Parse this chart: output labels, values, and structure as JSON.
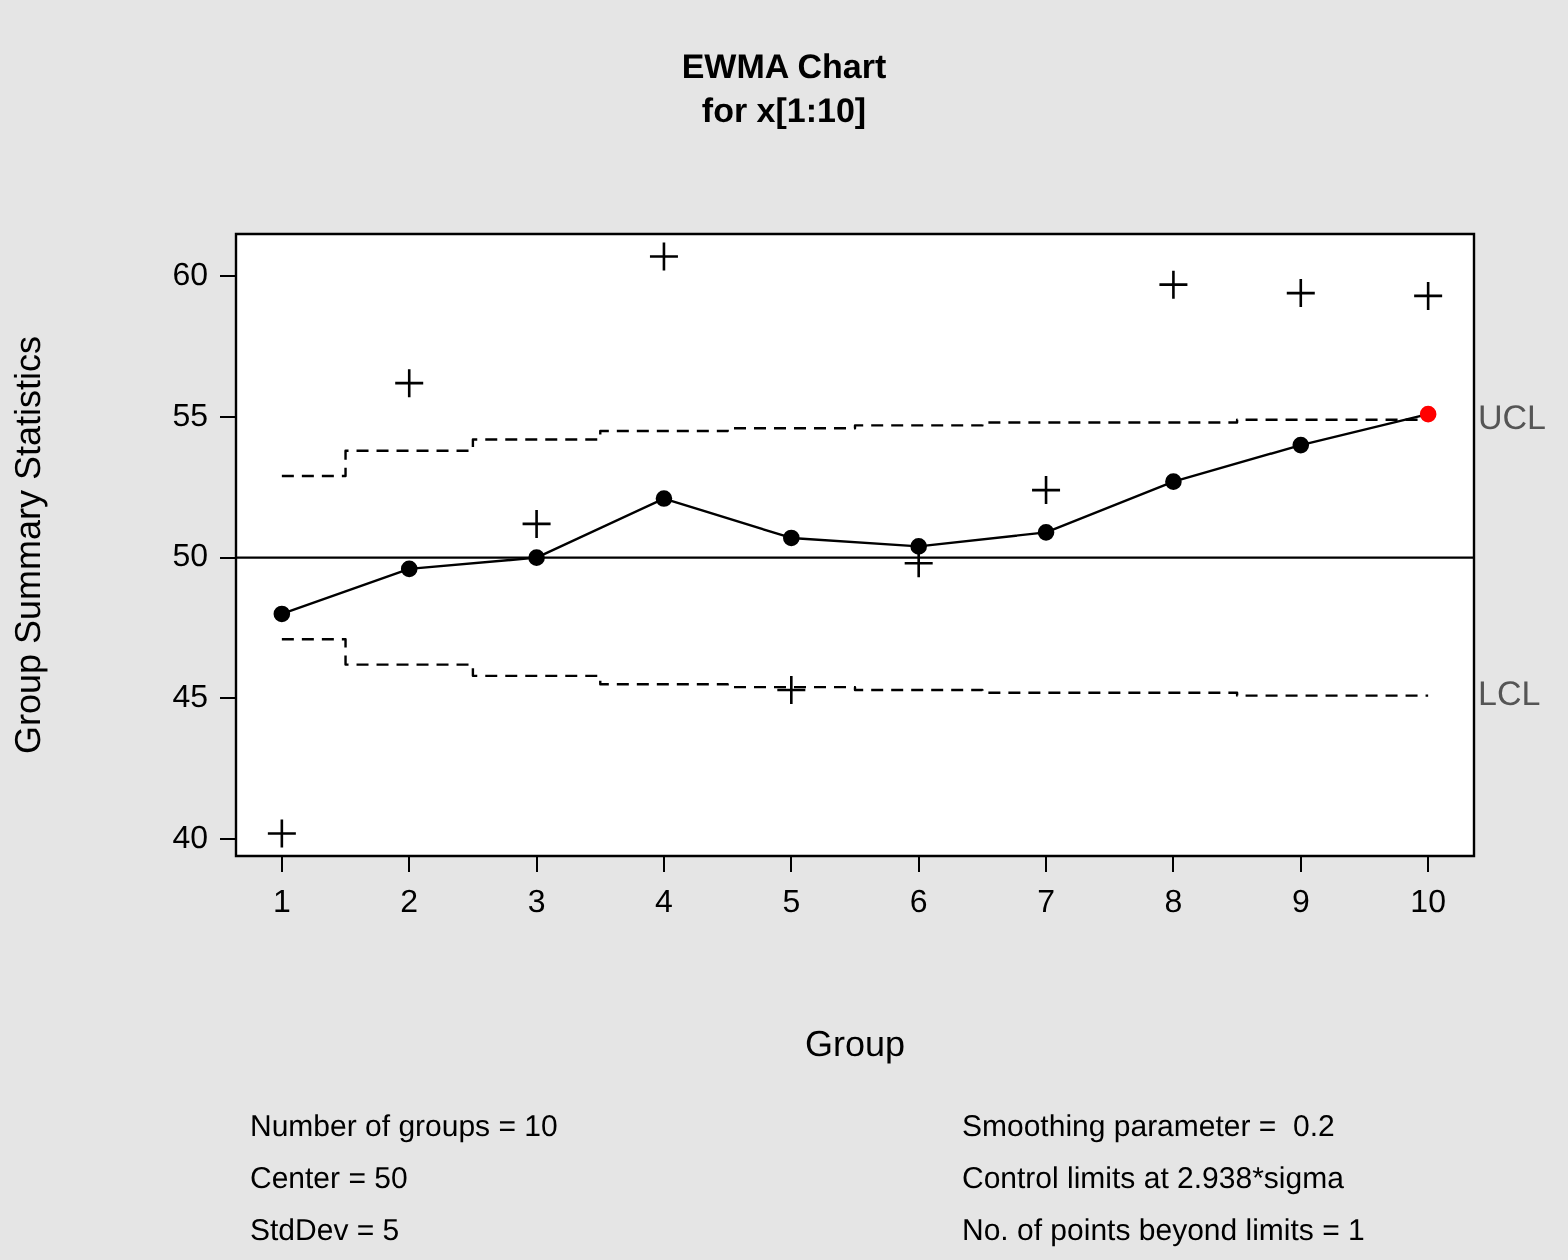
{
  "chart_data": {
    "type": "line",
    "title": "EWMA Chart",
    "subtitle": "for x[1:10]",
    "xlabel": "Group",
    "ylabel": "Group Summary Statistics",
    "x": [
      1,
      2,
      3,
      4,
      5,
      6,
      7,
      8,
      9,
      10
    ],
    "series": [
      {
        "type": "scatter",
        "marker": "cross",
        "color": "#000000",
        "values": [
          40.2,
          56.2,
          51.2,
          60.7,
          45.3,
          49.8,
          52.4,
          59.7,
          59.4,
          59.3
        ]
      },
      {
        "type": "line",
        "marker": "circle",
        "color": "#000000",
        "colors": [
          "#000000",
          "#000000",
          "#000000",
          "#000000",
          "#000000",
          "#000000",
          "#000000",
          "#000000",
          "#000000",
          "#ff0000"
        ],
        "values": [
          48.0,
          49.6,
          50.0,
          52.1,
          50.7,
          50.4,
          50.9,
          52.7,
          54.0,
          55.1
        ]
      },
      {
        "type": "step",
        "name": "UCL",
        "line_style": "dashed",
        "color": "#000000",
        "values": [
          52.9,
          53.8,
          54.2,
          54.5,
          54.6,
          54.7,
          54.8,
          54.8,
          54.9,
          54.9
        ]
      },
      {
        "type": "step",
        "name": "LCL",
        "line_style": "dashed",
        "color": "#000000",
        "values": [
          47.1,
          46.2,
          45.8,
          45.5,
          45.4,
          45.3,
          45.2,
          45.2,
          45.1,
          45.1
        ]
      }
    ],
    "ref_lines": [
      {
        "axis": "y",
        "value": 50,
        "color": "#000000"
      }
    ],
    "xlim": [
      0.64,
      10.36
    ],
    "xticks": [
      1,
      2,
      3,
      4,
      5,
      6,
      7,
      8,
      9,
      10
    ],
    "ylim": [
      39.4,
      61.5
    ],
    "yticks": [
      40,
      45,
      50,
      55,
      60
    ],
    "grid": false,
    "legend": false,
    "annotations": [
      "Number of groups = 10",
      "Center = 50",
      "StdDev = 5",
      "Smoothing parameter =  0.2",
      "Control limits at 2.938*sigma",
      "No. of points beyond limits = 1"
    ]
  }
}
